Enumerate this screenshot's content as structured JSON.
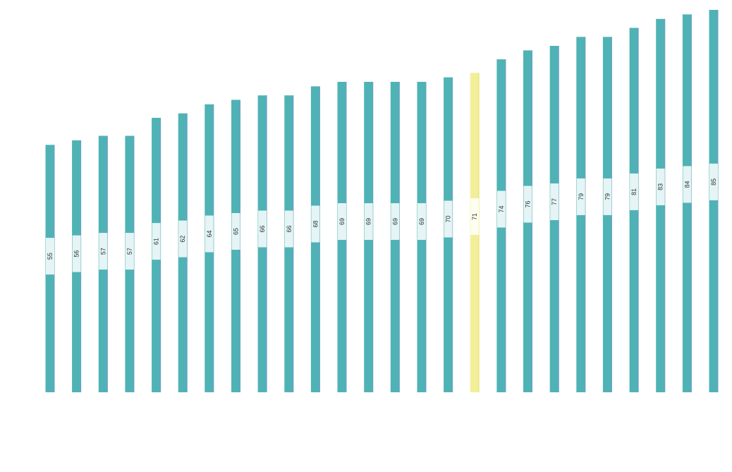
{
  "chart_data": {
    "type": "bar",
    "title": "",
    "xlabel": "",
    "ylabel": "",
    "categories": [
      "",
      "",
      "",
      "",
      "",
      "",
      "",
      "",
      "",
      "",
      "",
      "",
      "",
      "",
      "",
      "",
      "",
      "",
      "",
      "",
      "",
      "",
      "",
      "",
      "",
      ""
    ],
    "values": [
      55,
      56,
      57,
      57,
      61,
      62,
      64,
      65,
      66,
      66,
      68,
      69,
      69,
      69,
      69,
      70,
      71,
      74,
      76,
      77,
      79,
      79,
      81,
      83,
      84,
      85
    ],
    "highlight_index": 16,
    "ylim": [
      0,
      85
    ],
    "grid": false,
    "legend": "none",
    "colors": {
      "bar": "#4fb3b5",
      "bar_edge": "#6a9ec8",
      "highlight": "#f2ef9a",
      "label_box": "#ffffff"
    }
  }
}
